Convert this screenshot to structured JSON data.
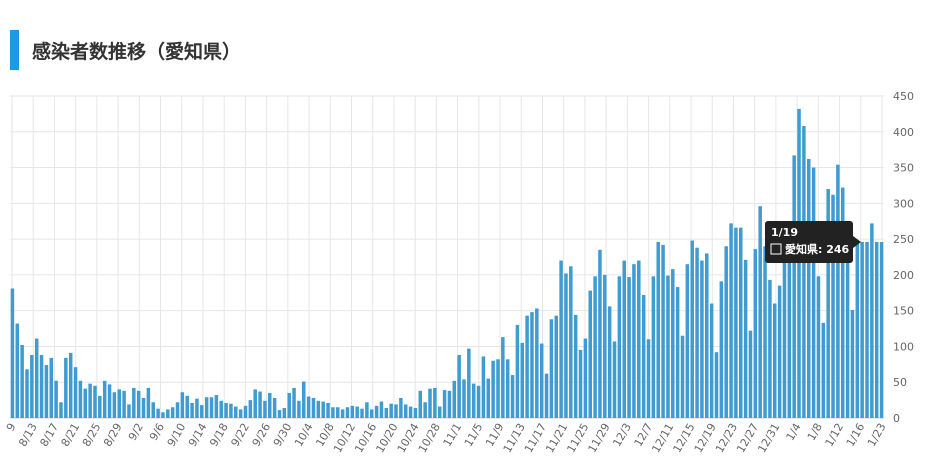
{
  "header": {
    "title": "感染者数推移（愛知県）"
  },
  "colors": {
    "accent": "#1E9BE0",
    "bar": "#3F9BD0",
    "grid": "#e6e6e6",
    "tooltip": "#222222"
  },
  "tooltip": {
    "date": "1/19",
    "series": "愛知県",
    "value": "246",
    "label": "愛知県: 246"
  },
  "chart_data": {
    "type": "bar",
    "title": "感染者数推移（愛知県）",
    "xlabel": "",
    "ylabel": "",
    "ylim": [
      0,
      450
    ],
    "yticks": [
      0,
      50,
      100,
      150,
      200,
      250,
      300,
      350,
      400,
      450
    ],
    "y_axis_position": "right",
    "grid": true,
    "legend": "none",
    "xtick_labels": [
      "9",
      "8/13",
      "8/17",
      "8/21",
      "8/25",
      "8/29",
      "9/2",
      "9/6",
      "9/10",
      "9/14",
      "9/18",
      "9/22",
      "9/26",
      "9/30",
      "10/4",
      "10/8",
      "10/12",
      "10/16",
      "10/20",
      "10/24",
      "10/28",
      "11/1",
      "11/5",
      "11/9",
      "11/13",
      "11/17",
      "11/21",
      "11/25",
      "11/29",
      "12/3",
      "12/7",
      "12/11",
      "12/15",
      "12/19",
      "12/23",
      "12/27",
      "12/31",
      "1/4",
      "1/8",
      "1/12",
      "1/16",
      "1/23"
    ],
    "series": [
      {
        "name": "愛知県",
        "values": [
          181,
          132,
          102,
          68,
          88,
          111,
          88,
          74,
          84,
          52,
          22,
          84,
          91,
          71,
          52,
          41,
          48,
          45,
          31,
          52,
          47,
          36,
          40,
          38,
          19,
          42,
          38,
          28,
          42,
          22,
          13,
          8,
          12,
          15,
          22,
          36,
          31,
          21,
          27,
          18,
          29,
          29,
          32,
          24,
          21,
          20,
          16,
          12,
          17,
          25,
          40,
          37,
          24,
          35,
          28,
          11,
          14,
          35,
          42,
          24,
          51,
          30,
          28,
          24,
          23,
          21,
          15,
          15,
          12,
          15,
          17,
          16,
          13,
          22,
          12,
          17,
          23,
          14,
          20,
          19,
          28,
          19,
          16,
          14,
          38,
          22,
          41,
          42,
          16,
          39,
          38,
          52,
          88,
          54,
          97,
          48,
          45,
          86,
          55,
          80,
          82,
          113,
          82,
          60,
          130,
          105,
          143,
          148,
          153,
          104,
          62,
          138,
          143,
          220,
          202,
          212,
          144,
          95,
          111,
          178,
          198,
          235,
          200,
          156,
          107,
          198,
          220,
          197,
          215,
          220,
          172,
          110,
          198,
          246,
          242,
          199,
          208,
          183,
          115,
          215,
          248,
          238,
          220,
          230,
          160,
          92,
          191,
          240,
          272,
          266,
          266,
          221,
          122,
          236,
          296,
          240,
          193,
          160,
          185,
          240,
          240,
          367,
          432,
          408,
          362,
          350,
          198,
          133,
          320,
          312,
          354,
          322,
          246,
          151,
          246,
          246,
          246,
          272,
          246,
          246
        ]
      }
    ]
  }
}
